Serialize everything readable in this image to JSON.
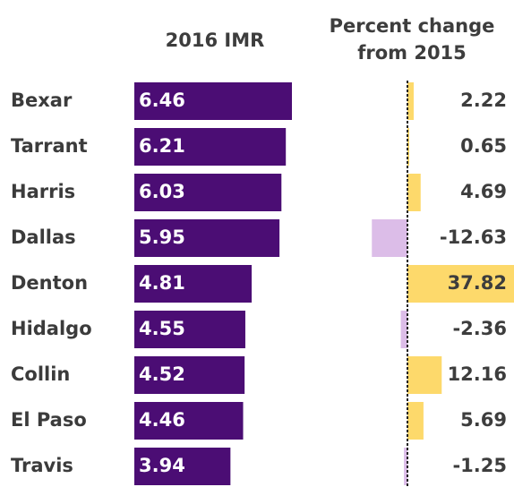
{
  "chart_data": {
    "type": "bar",
    "categories": [
      "Bexar",
      "Tarrant",
      "Harris",
      "Dallas",
      "Denton",
      "Hidalgo",
      "Collin",
      "El Paso",
      "Travis"
    ],
    "series": [
      {
        "name": "2016 IMR",
        "color": "#4b0d74",
        "values": [
          6.46,
          6.21,
          6.03,
          5.95,
          4.81,
          4.55,
          4.52,
          4.46,
          3.94
        ]
      },
      {
        "name": "Percent change from 2015",
        "color": "#fdd96b",
        "negative_color": "#dcbde8",
        "values": [
          2.22,
          0.65,
          4.69,
          -12.63,
          37.82,
          -2.36,
          12.16,
          5.69,
          -1.25
        ]
      }
    ]
  }
}
